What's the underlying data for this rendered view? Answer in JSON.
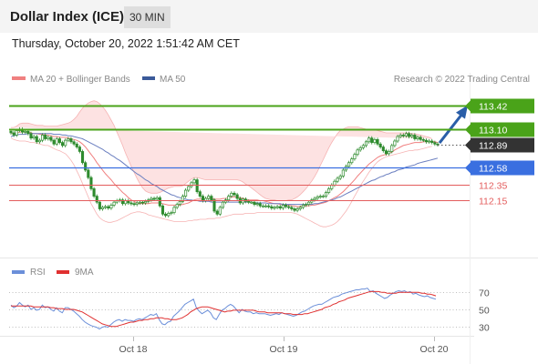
{
  "header": {
    "title": "Dollar Index (ICE)",
    "timeframe": "30 MIN"
  },
  "datetime": "Thursday, October 20, 2022 1:51:42 AM CET",
  "legend": {
    "ma20": "MA 20 + Bollinger Bands",
    "ma50": "MA 50",
    "credit": "Research © 2022 Trading Central",
    "rsi": "RSI",
    "ma9": "9MA"
  },
  "colors": {
    "candle": "#2e8b2e",
    "ma20": "#f08080",
    "ma50": "#6b7fc0",
    "bollinger_fill": "#fde2e2",
    "resistance": "#4aa319",
    "pivot": "#3a6fe0",
    "support": "#e35d5d",
    "current": "#333333",
    "arrow": "#2a5ea8",
    "rsi": "#6b8fd9",
    "rsi_ma": "#e03030"
  },
  "chart_data": [
    {
      "type": "candlestick",
      "title": "Dollar Index (ICE)",
      "timeframe": "30 MIN",
      "ylim": [
        111.78,
        113.66
      ],
      "x_ticks": [
        "Oct 18",
        "Oct 19",
        "Oct 20"
      ],
      "levels": [
        {
          "value": 113.42,
          "label": "113.42",
          "kind": "resistance"
        },
        {
          "value": 113.1,
          "label": "113.10",
          "kind": "resistance"
        },
        {
          "value": 112.89,
          "label": "112.89",
          "kind": "current"
        },
        {
          "value": 112.58,
          "label": "112.58",
          "kind": "pivot"
        },
        {
          "value": 112.35,
          "label": "112.35",
          "kind": "support"
        },
        {
          "value": 112.15,
          "label": "112.15",
          "kind": "support"
        }
      ],
      "close": [
        113.05,
        113.02,
        113.08,
        113.1,
        113.06,
        113.07,
        113.04,
        112.98,
        113.0,
        112.93,
        112.95,
        113.02,
        112.97,
        112.99,
        112.95,
        112.9,
        112.97,
        112.92,
        112.88,
        112.95,
        112.97,
        112.93,
        112.9,
        112.86,
        112.8,
        112.65,
        112.55,
        112.45,
        112.3,
        112.2,
        112.12,
        112.03,
        112.05,
        112.06,
        112.04,
        112.08,
        112.12,
        112.14,
        112.15,
        112.1,
        112.14,
        112.11,
        112.1,
        112.09,
        112.11,
        112.12,
        112.11,
        112.13,
        112.15,
        112.17,
        112.16,
        112.18,
        112.07,
        111.96,
        111.94,
        111.97,
        111.98,
        112.05,
        112.09,
        112.13,
        112.2,
        112.28,
        112.33,
        112.38,
        112.42,
        112.26,
        112.2,
        112.14,
        112.17,
        112.2,
        112.15,
        112.0,
        111.96,
        112.05,
        112.12,
        112.15,
        112.2,
        112.24,
        112.22,
        112.17,
        112.11,
        112.16,
        112.13,
        112.12,
        112.12,
        112.09,
        112.1,
        112.07,
        112.07,
        112.07,
        112.06,
        112.04,
        112.05,
        112.06,
        112.04,
        112.08,
        112.06,
        112.05,
        112.03,
        112.01,
        112.03,
        112.05,
        112.08,
        112.09,
        112.12,
        112.15,
        112.17,
        112.19,
        112.2,
        112.2,
        112.25,
        112.3,
        112.35,
        112.4,
        112.44,
        112.47,
        112.55,
        112.6,
        112.65,
        112.7,
        112.76,
        112.82,
        112.85,
        112.88,
        112.93,
        112.98,
        112.92,
        112.96,
        112.9,
        112.86,
        112.81,
        112.77,
        112.8,
        112.88,
        112.94,
        113.0,
        113.02,
        113.01,
        113.04,
        113.0,
        113.02,
        112.97,
        112.99,
        112.96,
        112.95,
        112.93,
        112.94,
        112.92,
        112.9,
        112.89
      ],
      "ma20": [
        113.05,
        113.04,
        113.05,
        113.06,
        113.06,
        113.06,
        113.06,
        113.05,
        113.04,
        113.04,
        113.03,
        113.03,
        113.02,
        113.02,
        113.01,
        113.0,
        113.0,
        112.99,
        112.99,
        112.99,
        112.98,
        112.97,
        112.96,
        112.95,
        112.93,
        112.9,
        112.86,
        112.81,
        112.76,
        112.71,
        112.65,
        112.6,
        112.55,
        112.5,
        112.46,
        112.42,
        112.37,
        112.33,
        112.29,
        112.25,
        112.22,
        112.18,
        112.15,
        112.13,
        112.11,
        112.1,
        112.1,
        112.1,
        112.1,
        112.11,
        112.11,
        112.11,
        112.11,
        112.1,
        112.09,
        112.08,
        112.08,
        112.08,
        112.08,
        112.08,
        112.09,
        112.1,
        112.11,
        112.13,
        112.15,
        112.16,
        112.16,
        112.16,
        112.17,
        112.17,
        112.17,
        112.16,
        112.16,
        112.16,
        112.17,
        112.17,
        112.18,
        112.19,
        112.19,
        112.19,
        112.18,
        112.17,
        112.16,
        112.15,
        112.15,
        112.15,
        112.15,
        112.14,
        112.14,
        112.13,
        112.12,
        112.11,
        112.1,
        112.1,
        112.09,
        112.09,
        112.08,
        112.08,
        112.07,
        112.07,
        112.06,
        112.06,
        112.07,
        112.07,
        112.07,
        112.08,
        112.08,
        112.09,
        112.1,
        112.11,
        112.12,
        112.14,
        112.16,
        112.18,
        112.2,
        112.23,
        112.26,
        112.3,
        112.34,
        112.38,
        112.42,
        112.47,
        112.51,
        112.55,
        112.59,
        112.63,
        112.66,
        112.69,
        112.72,
        112.74,
        112.75,
        112.76,
        112.78,
        112.79,
        112.82,
        112.84,
        112.86,
        112.88,
        112.89,
        112.9,
        112.91,
        112.92,
        112.92,
        112.92,
        112.93,
        112.93,
        112.93,
        112.93,
        112.93,
        112.92
      ],
      "bb_upper": [
        113.12,
        113.12,
        113.14,
        113.17,
        113.18,
        113.18,
        113.18,
        113.17,
        113.16,
        113.15,
        113.15,
        113.15,
        113.14,
        113.14,
        113.14,
        113.14,
        113.14,
        113.15,
        113.16,
        113.17,
        113.18,
        113.2,
        113.23,
        113.27,
        113.33,
        113.38,
        113.42,
        113.45,
        113.47,
        113.48,
        113.47,
        113.44,
        113.4,
        113.35,
        113.29,
        113.22,
        113.15,
        113.06,
        112.97,
        112.88,
        112.78,
        112.69,
        112.6,
        112.52,
        112.44,
        112.37,
        112.31,
        112.27,
        112.25,
        112.24,
        112.24,
        112.24,
        112.25,
        112.27,
        112.29,
        112.31,
        112.32,
        112.33,
        112.33,
        112.33,
        112.34,
        112.37,
        112.4,
        112.43,
        112.45,
        112.45,
        112.44,
        112.43,
        112.42,
        112.42,
        112.42,
        112.42,
        112.42,
        112.42,
        112.42,
        112.42,
        112.42,
        112.42,
        112.42,
        112.42,
        112.41,
        112.39,
        112.36,
        112.34,
        112.31,
        112.28,
        112.25,
        112.22,
        112.19,
        112.17,
        112.16,
        112.15,
        112.15,
        112.14,
        112.14,
        112.14,
        112.14,
        112.15,
        112.15,
        112.17,
        112.19,
        112.22,
        112.26,
        112.3,
        112.35,
        112.4,
        112.46,
        112.53,
        112.61,
        112.69,
        112.77,
        112.85,
        112.92,
        112.98,
        113.04,
        113.08,
        113.1,
        113.12,
        113.13,
        113.13,
        113.13,
        113.13,
        113.12,
        113.11,
        113.1,
        113.1,
        113.1,
        113.09,
        113.08,
        113.07,
        113.06,
        113.05,
        113.05,
        113.05,
        113.05,
        113.05,
        113.05,
        113.05,
        113.05,
        113.05,
        113.04,
        113.04,
        113.03,
        113.02,
        113.01,
        113.0,
        112.99,
        112.97
      ],
      "bb_lower": [
        112.98,
        112.96,
        112.95,
        112.94,
        112.94,
        112.94,
        112.93,
        112.92,
        112.92,
        112.91,
        112.9,
        112.89,
        112.88,
        112.88,
        112.86,
        112.84,
        112.82,
        112.81,
        112.79,
        112.77,
        112.73,
        112.68,
        112.62,
        112.54,
        112.46,
        112.37,
        112.28,
        112.19,
        112.1,
        112.03,
        111.96,
        111.91,
        111.88,
        111.86,
        111.85,
        111.85,
        111.86,
        111.87,
        111.89,
        111.91,
        111.93,
        111.95,
        111.97,
        111.98,
        111.99,
        111.99,
        111.98,
        111.97,
        111.95,
        111.94,
        111.93,
        111.92,
        111.91,
        111.9,
        111.89,
        111.88,
        111.87,
        111.86,
        111.86,
        111.86,
        111.86,
        111.86,
        111.87,
        111.87,
        111.88,
        111.88,
        111.89,
        111.89,
        111.89,
        111.9,
        111.9,
        111.9,
        111.91,
        111.91,
        111.92,
        111.93,
        111.94,
        111.95,
        111.96,
        111.96,
        111.96,
        111.96,
        111.97,
        111.97,
        111.97,
        111.97,
        111.98,
        111.98,
        111.98,
        111.98,
        111.98,
        111.98,
        111.98,
        111.98,
        111.98,
        111.98,
        111.98,
        111.98,
        111.98,
        111.97,
        111.96,
        111.94,
        111.92,
        111.9,
        111.88,
        111.86,
        111.84,
        111.82,
        111.8,
        111.79,
        111.79,
        111.8,
        111.81,
        111.83,
        111.86,
        111.9,
        111.95,
        112.0,
        112.06,
        112.13,
        112.2,
        112.27,
        112.34,
        112.4,
        112.46,
        112.52,
        112.57,
        112.62,
        112.66,
        112.69,
        112.71,
        112.73,
        112.74,
        112.75,
        112.76,
        112.77,
        112.78,
        112.79,
        112.8,
        112.81,
        112.81,
        112.82,
        112.82,
        112.83,
        112.84,
        112.85,
        112.86,
        112.87
      ],
      "ma50": [
        113.0,
        113.01,
        113.02,
        113.03,
        113.03,
        113.03,
        113.04,
        113.04,
        113.04,
        113.04,
        113.04,
        113.04,
        113.04,
        113.04,
        113.04,
        113.03,
        113.03,
        113.03,
        113.02,
        113.02,
        113.01,
        113.01,
        113.0,
        112.99,
        112.98,
        112.97,
        112.95,
        112.93,
        112.91,
        112.89,
        112.87,
        112.85,
        112.83,
        112.8,
        112.78,
        112.75,
        112.73,
        112.7,
        112.68,
        112.65,
        112.62,
        112.59,
        112.56,
        112.53,
        112.5,
        112.48,
        112.45,
        112.42,
        112.4,
        112.37,
        112.35,
        112.33,
        112.3,
        112.28,
        112.26,
        112.24,
        112.22,
        112.21,
        112.19,
        112.18,
        112.17,
        112.16,
        112.15,
        112.15,
        112.14,
        112.14,
        112.13,
        112.13,
        112.13,
        112.13,
        112.12,
        112.12,
        112.12,
        112.12,
        112.12,
        112.12,
        112.12,
        112.12,
        112.12,
        112.12,
        112.12,
        112.12,
        112.12,
        112.12,
        112.12,
        112.11,
        112.11,
        112.11,
        112.11,
        112.11,
        112.1,
        112.1,
        112.1,
        112.1,
        112.1,
        112.09,
        112.09,
        112.09,
        112.09,
        112.09,
        112.09,
        112.09,
        112.09,
        112.09,
        112.09,
        112.09,
        112.1,
        112.1,
        112.11,
        112.12,
        112.13,
        112.14,
        112.15,
        112.16,
        112.18,
        112.19,
        112.21,
        112.23,
        112.25,
        112.27,
        112.29,
        112.31,
        112.33,
        112.35,
        112.37,
        112.39,
        112.41,
        112.42,
        112.44,
        112.46,
        112.47,
        112.49,
        112.5,
        112.52,
        112.53,
        112.55,
        112.56,
        112.57,
        112.59,
        112.6,
        112.61,
        112.62,
        112.64,
        112.65,
        112.66,
        112.67,
        112.68,
        112.69,
        112.7,
        112.71
      ]
    },
    {
      "type": "line",
      "title": "RSI",
      "ylim": [
        20,
        80
      ],
      "y_ticks": [
        30,
        50,
        70
      ],
      "series": [
        {
          "name": "RSI",
          "values": [
            55,
            52,
            54,
            58,
            55,
            53,
            55,
            50,
            52,
            49,
            50,
            55,
            52,
            53,
            50,
            48,
            52,
            48,
            46,
            52,
            52,
            50,
            48,
            45,
            42,
            38,
            35,
            33,
            31,
            30,
            29,
            27,
            29,
            30,
            29,
            32,
            35,
            37,
            38,
            36,
            38,
            37,
            37,
            36,
            38,
            39,
            38,
            40,
            42,
            44,
            43,
            45,
            38,
            33,
            32,
            35,
            36,
            42,
            45,
            48,
            52,
            56,
            58,
            60,
            62,
            52,
            48,
            45,
            47,
            49,
            46,
            40,
            38,
            44,
            49,
            51,
            54,
            56,
            54,
            50,
            46,
            50,
            48,
            47,
            47,
            45,
            46,
            45,
            45,
            45,
            44,
            43,
            44,
            45,
            44,
            46,
            45,
            44,
            43,
            42,
            43,
            45,
            47,
            48,
            50,
            52,
            54,
            55,
            56,
            56,
            58,
            60,
            62,
            64,
            65,
            66,
            68,
            69,
            70,
            71,
            72,
            73,
            73,
            74,
            74,
            75,
            71,
            72,
            69,
            67,
            65,
            63,
            64,
            67,
            69,
            71,
            72,
            71,
            72,
            70,
            71,
            68,
            69,
            67,
            66,
            65,
            66,
            64,
            63,
            62
          ]
        },
        {
          "name": "9MA",
          "values": [
            54,
            54,
            54,
            54,
            54,
            54,
            54,
            54,
            53,
            53,
            53,
            53,
            53,
            53,
            52,
            52,
            51,
            51,
            51,
            50,
            50,
            50,
            50,
            49,
            48,
            47,
            45,
            43,
            41,
            39,
            37,
            35,
            33,
            32,
            31,
            30,
            30,
            30,
            31,
            32,
            33,
            34,
            35,
            35,
            36,
            37,
            37,
            38,
            38,
            39,
            39,
            40,
            40,
            40,
            39,
            39,
            38,
            38,
            38,
            39,
            40,
            42,
            44,
            47,
            49,
            51,
            52,
            53,
            53,
            53,
            52,
            51,
            50,
            49,
            48,
            47,
            48,
            48,
            49,
            49,
            49,
            49,
            49,
            49,
            49,
            49,
            48,
            47,
            47,
            47,
            46,
            46,
            46,
            46,
            46,
            46,
            45,
            45,
            45,
            44,
            44,
            44,
            44,
            45,
            45,
            46,
            47,
            48,
            49,
            50,
            52,
            53,
            54,
            56,
            57,
            59,
            60,
            61,
            63,
            64,
            65,
            66,
            67,
            68,
            69,
            70,
            71,
            71,
            71,
            71,
            70,
            70,
            69,
            69,
            69,
            69,
            70,
            70,
            70,
            70,
            70,
            70,
            70,
            70,
            69,
            69,
            68,
            68,
            67,
            66
          ]
        }
      ]
    }
  ]
}
